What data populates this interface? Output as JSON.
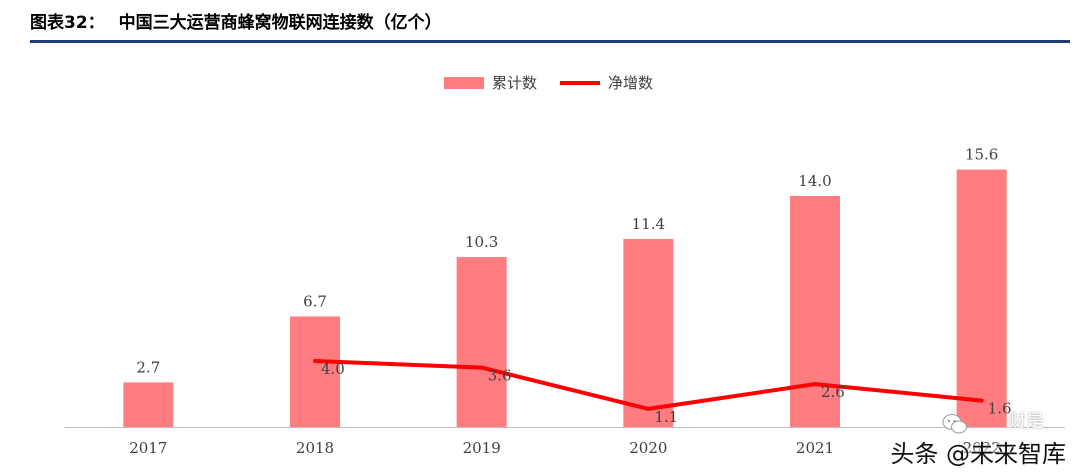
{
  "header": {
    "figure_label": "图表32：",
    "title": "中国三大运营商蜂窝物联网连接数（亿个）",
    "rule_color": "#1f3e73"
  },
  "watermark": {
    "main": "头条 @未来智库",
    "sub": "财是"
  },
  "chart_data": {
    "type": "bar",
    "categories": [
      "2017",
      "2018",
      "2019",
      "2020",
      "2021",
      "2022"
    ],
    "series": [
      {
        "name": "累计数",
        "kind": "bar",
        "color": "#ff7c80",
        "values": [
          2.7,
          6.7,
          10.3,
          11.4,
          14.0,
          15.6
        ],
        "labels": [
          "2.7",
          "6.7",
          "10.3",
          "11.4",
          "14.0",
          "15.6"
        ]
      },
      {
        "name": "净增数",
        "kind": "line",
        "color": "#ff0000",
        "values": [
          null,
          4.0,
          3.6,
          1.1,
          2.6,
          1.6
        ],
        "labels": [
          "",
          "4.0",
          "3.6",
          "1.1",
          "2.6",
          "1.6"
        ]
      }
    ],
    "ylim": [
      0,
      16.5
    ],
    "grid": false,
    "legend_position": "top-center"
  }
}
